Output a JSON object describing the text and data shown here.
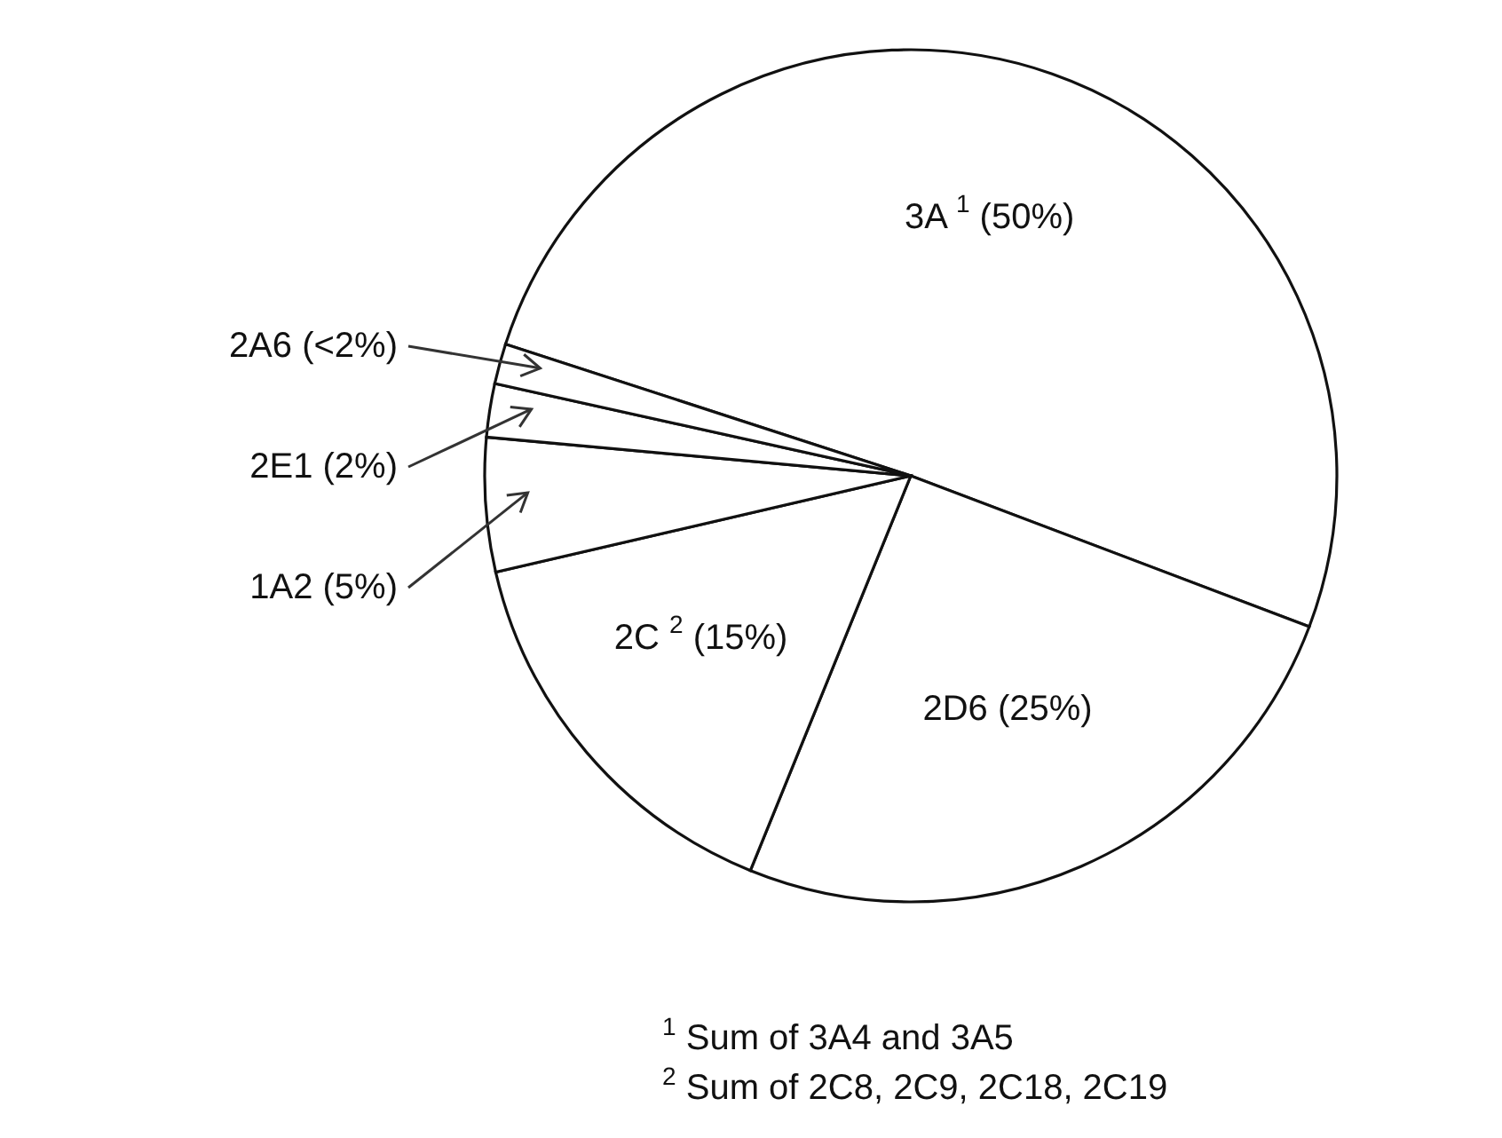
{
  "chart_data": {
    "type": "pie",
    "categories": [
      "3A $^{1}$",
      "2D6",
      "2C $^{2}$",
      "1A2",
      "2E1",
      "2A6"
    ],
    "values": [
      50,
      25,
      15,
      5,
      2,
      1.5
    ],
    "value_labels": [
      "(50%)",
      "(25%)",
      "(15%)",
      "(5%)",
      "(2%)",
      "(<2%)"
    ],
    "colors": [
      "#ffffff",
      "#ffffff",
      "#ffffff",
      "#ffffff",
      "#ffffff",
      "#ffffff"
    ],
    "legend": false,
    "annotations": [
      "$^{1}$ Sum of 3A4 and 3A5",
      "$^{2}$ Sum of 2C8, 2C9, 2C18, 2C19"
    ]
  }
}
